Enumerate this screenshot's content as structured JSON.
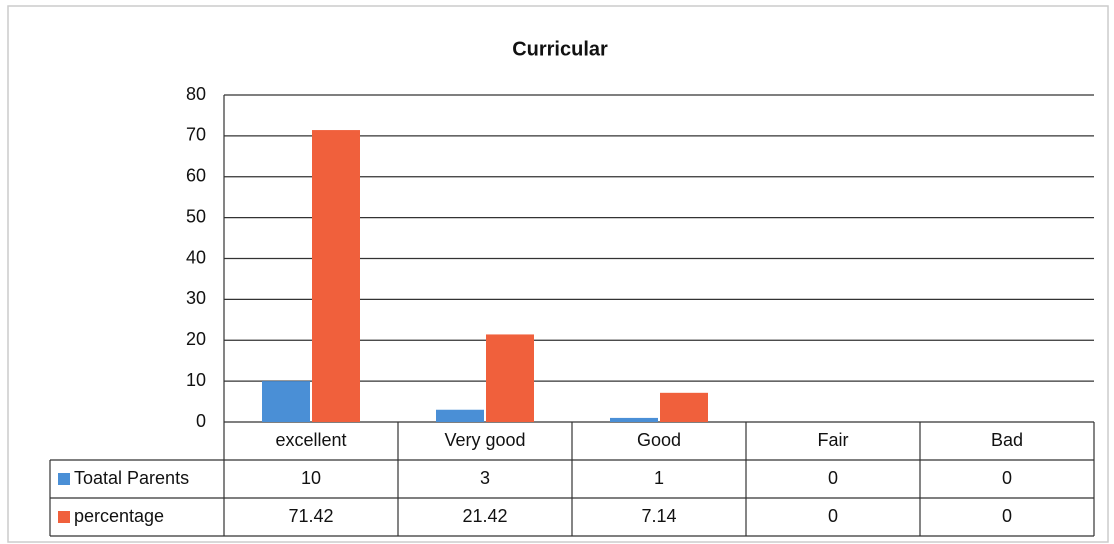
{
  "chart_data": {
    "type": "bar",
    "title": "Curricular",
    "categories": [
      "excellent",
      "Very good",
      "Good",
      "Fair",
      "Bad"
    ],
    "series": [
      {
        "name": "Toatal Parents",
        "color": "#4a8fd6",
        "values": [
          10,
          3,
          1,
          0,
          0
        ]
      },
      {
        "name": "percentage",
        "color": "#f0603c",
        "values": [
          71.42,
          21.42,
          7.14,
          0,
          0
        ]
      }
    ],
    "ylim": [
      0,
      80
    ],
    "yticks": [
      0,
      10,
      20,
      30,
      40,
      50,
      60,
      70,
      80
    ],
    "grid": true,
    "data_table": true
  }
}
